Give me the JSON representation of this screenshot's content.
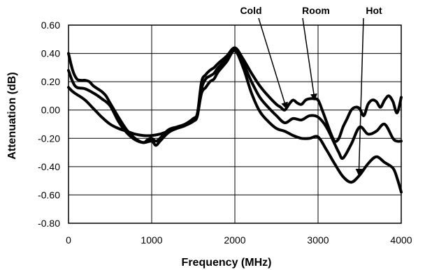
{
  "chart_data": {
    "type": "line",
    "title": "",
    "xlabel": "Frequency (MHz)",
    "ylabel": "Attenuation (dB)",
    "xlim": [
      0,
      4000
    ],
    "ylim": [
      -0.8,
      0.6
    ],
    "xticks": [
      0,
      1000,
      2000,
      3000,
      4000
    ],
    "xtick_labels": [
      "0",
      "1000",
      "2000",
      "3000",
      "4000"
    ],
    "yticks": [
      -0.8,
      -0.6,
      -0.4,
      -0.2,
      0.0,
      0.2,
      0.4,
      0.6
    ],
    "ytick_labels": [
      "-0.80",
      "-0.60",
      "-0.40",
      "-0.20",
      "0.00",
      "0.20",
      "0.40",
      "0.60"
    ],
    "grid": true,
    "legend": "none",
    "line_color": "#000000",
    "series": [
      {
        "name": "Cold",
        "x": [
          0,
          50,
          100,
          150,
          200,
          250,
          300,
          350,
          400,
          450,
          500,
          600,
          700,
          800,
          900,
          950,
          1000,
          1050,
          1100,
          1200,
          1300,
          1400,
          1500,
          1550,
          1600,
          1650,
          1700,
          1750,
          1800,
          1900,
          2000,
          2100,
          2200,
          2300,
          2400,
          2500,
          2550,
          2600,
          2650,
          2700,
          2750,
          2800,
          2850,
          2900,
          2950,
          3000,
          3050,
          3100,
          3150,
          3200,
          3250,
          3300,
          3350,
          3400,
          3450,
          3500,
          3550,
          3600,
          3650,
          3700,
          3750,
          3800,
          3850,
          3900,
          3950,
          4000
        ],
        "y": [
          0.4,
          0.28,
          0.22,
          0.21,
          0.21,
          0.2,
          0.17,
          0.15,
          0.13,
          0.1,
          0.05,
          -0.05,
          -0.14,
          -0.2,
          -0.23,
          -0.21,
          -0.2,
          -0.22,
          -0.2,
          -0.14,
          -0.12,
          -0.1,
          -0.06,
          -0.02,
          0.2,
          0.25,
          0.28,
          0.3,
          0.33,
          0.38,
          0.44,
          0.36,
          0.26,
          0.17,
          0.1,
          0.04,
          0.02,
          0.0,
          0.04,
          0.07,
          0.05,
          0.04,
          0.07,
          0.08,
          0.08,
          0.07,
          0.0,
          -0.08,
          -0.16,
          -0.22,
          -0.2,
          -0.12,
          -0.06,
          0.0,
          0.02,
          0.01,
          -0.04,
          0.04,
          0.07,
          0.06,
          0.02,
          0.07,
          0.1,
          0.06,
          -0.02,
          0.09
        ]
      },
      {
        "name": "Room",
        "x": [
          0,
          50,
          100,
          200,
          300,
          400,
          500,
          600,
          700,
          800,
          900,
          1000,
          1050,
          1100,
          1200,
          1300,
          1400,
          1500,
          1550,
          1600,
          1650,
          1700,
          1750,
          1800,
          1900,
          2000,
          2100,
          2200,
          2300,
          2400,
          2500,
          2600,
          2700,
          2800,
          2900,
          3000,
          3100,
          3200,
          3250,
          3300,
          3400,
          3500,
          3600,
          3700,
          3800,
          3900,
          3950,
          4000
        ],
        "y": [
          0.28,
          0.2,
          0.16,
          0.15,
          0.12,
          0.08,
          0.03,
          -0.08,
          -0.16,
          -0.21,
          -0.23,
          -0.22,
          -0.25,
          -0.22,
          -0.16,
          -0.13,
          -0.11,
          -0.08,
          -0.04,
          0.15,
          0.22,
          0.24,
          0.26,
          0.3,
          0.36,
          0.42,
          0.33,
          0.2,
          0.09,
          0.02,
          -0.04,
          -0.09,
          -0.06,
          -0.07,
          -0.04,
          -0.05,
          -0.12,
          -0.24,
          -0.3,
          -0.34,
          -0.24,
          -0.12,
          -0.17,
          -0.15,
          -0.1,
          -0.2,
          -0.22,
          -0.22
        ]
      },
      {
        "name": "Hot",
        "x": [
          0,
          50,
          100,
          200,
          300,
          400,
          500,
          600,
          700,
          800,
          900,
          1000,
          1100,
          1200,
          1300,
          1400,
          1500,
          1550,
          1600,
          1650,
          1700,
          1750,
          1800,
          1900,
          2000,
          2100,
          2200,
          2300,
          2400,
          2500,
          2600,
          2700,
          2800,
          2900,
          3000,
          3100,
          3200,
          3300,
          3400,
          3500,
          3600,
          3700,
          3800,
          3900,
          3950,
          4000
        ],
        "y": [
          0.16,
          0.13,
          0.11,
          0.07,
          0.01,
          -0.05,
          -0.1,
          -0.13,
          -0.15,
          -0.17,
          -0.18,
          -0.18,
          -0.17,
          -0.15,
          -0.13,
          -0.11,
          -0.07,
          -0.03,
          0.12,
          0.16,
          0.2,
          0.22,
          0.27,
          0.34,
          0.42,
          0.3,
          0.12,
          -0.01,
          -0.08,
          -0.13,
          -0.15,
          -0.18,
          -0.2,
          -0.2,
          -0.19,
          -0.28,
          -0.38,
          -0.47,
          -0.51,
          -0.46,
          -0.38,
          -0.33,
          -0.37,
          -0.41,
          -0.48,
          -0.58
        ]
      }
    ],
    "annotations": [
      {
        "text": "Cold",
        "series": "Cold",
        "target": [
          2620,
          0.01
        ]
      },
      {
        "text": "Room",
        "series": "Room",
        "target": [
          2960,
          0.07
        ]
      },
      {
        "text": "Hot",
        "series": "Hot",
        "target": [
          3490,
          -0.46
        ]
      }
    ]
  }
}
